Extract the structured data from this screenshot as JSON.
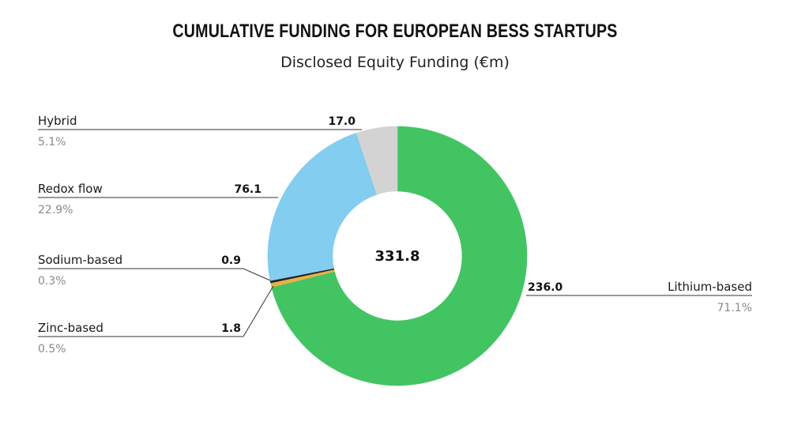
{
  "chart_data": {
    "type": "pie",
    "style": "donut",
    "title": "CUMULATIVE FUNDING FOR EUROPEAN BESS STARTUPS",
    "subtitle": "Disclosed Equity Funding (€m)",
    "total_label": "331.8",
    "total": 331.8,
    "slices": [
      {
        "name": "Lithium-based",
        "value": 236.0,
        "value_label": "236.0",
        "percent_label": "71.1%",
        "color": "#43c463"
      },
      {
        "name": "Zinc-based",
        "value": 1.8,
        "value_label": "1.8",
        "percent_label": "0.5%",
        "color": "#e8b04a"
      },
      {
        "name": "Sodium-based",
        "value": 0.9,
        "value_label": "0.9",
        "percent_label": "0.3%",
        "color": "#222222"
      },
      {
        "name": "Redox flow",
        "value": 76.1,
        "value_label": "76.1",
        "percent_label": "22.9%",
        "color": "#82cdf0"
      },
      {
        "name": "Hybrid",
        "value": 17.0,
        "value_label": "17.0",
        "percent_label": "5.1%",
        "color": "#d3d3d3"
      }
    ]
  }
}
